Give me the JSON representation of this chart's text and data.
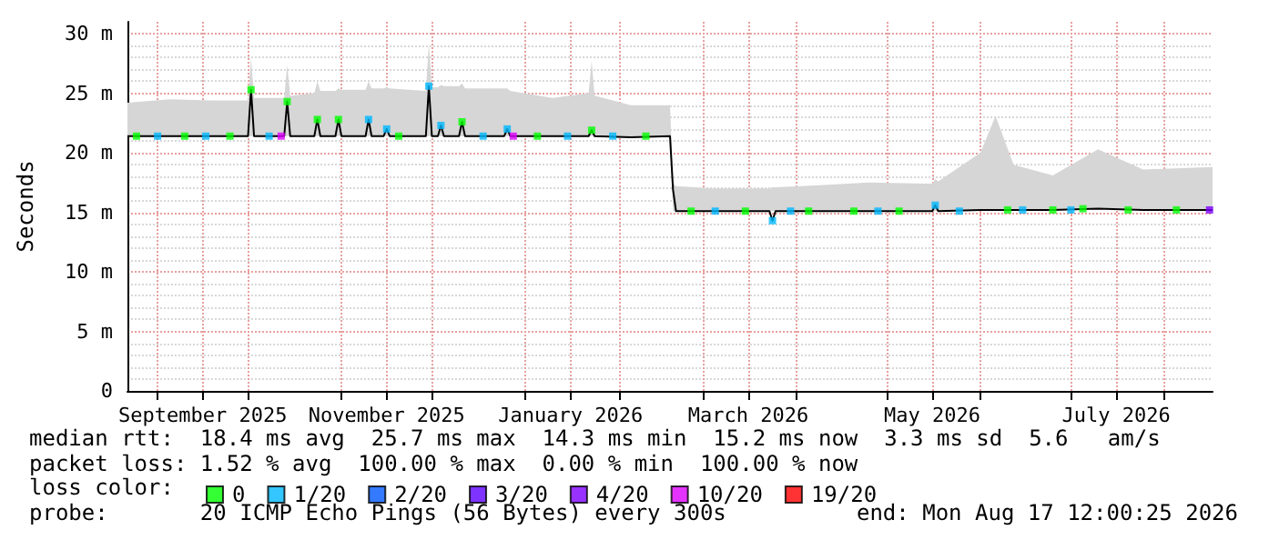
{
  "chart_data": {
    "type": "line",
    "ylabel": "Seconds",
    "legend_title": "loss color:",
    "legend": "bottom left",
    "grid": true,
    "marker": "square",
    "xlim": [
      "2025-08-22",
      "2026-08-17"
    ],
    "xticks": [
      {
        "value": "2025-09-01",
        "label": null
      },
      {
        "value": "2025-09-16",
        "label": "September 2025"
      },
      {
        "value": "2025-10-01",
        "label": null
      },
      {
        "value": "2025-11-01",
        "label": null
      },
      {
        "value": "2025-11-16",
        "label": "November 2025"
      },
      {
        "value": "2025-12-01",
        "label": null
      },
      {
        "value": "2026-01-01",
        "label": null
      },
      {
        "value": "2026-01-16",
        "label": "January 2026"
      },
      {
        "value": "2026-02-01",
        "label": null
      },
      {
        "value": "2026-03-01",
        "label": null
      },
      {
        "value": "2026-03-16",
        "label": "March 2026"
      },
      {
        "value": "2026-04-01",
        "label": null
      },
      {
        "value": "2026-05-01",
        "label": null
      },
      {
        "value": "2026-05-16",
        "label": "May 2026"
      },
      {
        "value": "2026-06-01",
        "label": null
      },
      {
        "value": "2026-07-01",
        "label": null
      },
      {
        "value": "2026-07-16",
        "label": "July 2026"
      },
      {
        "value": "2026-08-01",
        "label": null
      }
    ],
    "ylim": [
      0,
      31
    ],
    "yticks": [
      0,
      {
        "value": 1,
        "label": null
      },
      {
        "value": 2,
        "label": null
      },
      {
        "value": 3,
        "label": null
      },
      {
        "value": 4,
        "label": null
      },
      {
        "value": 5,
        "label": "5 m"
      },
      {
        "value": 6,
        "label": null
      },
      {
        "value": 7,
        "label": null
      },
      {
        "value": 8,
        "label": null
      },
      {
        "value": 9,
        "label": null
      },
      {
        "value": 10,
        "label": "10 m"
      },
      {
        "value": 11,
        "label": null
      },
      {
        "value": 12,
        "label": null
      },
      {
        "value": 13,
        "label": null
      },
      {
        "value": 14,
        "label": null
      },
      {
        "value": 15,
        "label": "15 m"
      },
      {
        "value": 16,
        "label": null
      },
      {
        "value": 17,
        "label": null
      },
      {
        "value": 18,
        "label": null
      },
      {
        "value": 19,
        "label": null
      },
      {
        "value": 20,
        "label": "20 m"
      },
      {
        "value": 21,
        "label": null
      },
      {
        "value": 22,
        "label": null
      },
      {
        "value": 23,
        "label": null
      },
      {
        "value": 24,
        "label": null
      },
      {
        "value": 25,
        "label": "25 m"
      },
      {
        "value": 26,
        "label": null
      },
      {
        "value": 27,
        "label": null
      },
      {
        "value": 28,
        "label": null
      },
      {
        "value": 29,
        "label": null
      },
      {
        "value": 30,
        "label": "30 m"
      }
    ],
    "annotations": [
      "median rtt:  18.4 ms avg  25.7 ms max  14.3 ms min  15.2 ms now  3.3 ms sd  5.6   am/s",
      "packet loss: 1.52 % avg  100.00 % max  0.00 % min  100.00 % now",
      "probe:       20 ICMP Echo Pings (56 Bytes) every 300s",
      "end: Mon Aug 17 12:00:25 2026"
    ],
    "series": [
      {
        "color": "#000000",
        "marker": "none",
        "x": [
          "2025-08-22",
          "2025-09-05",
          "2025-09-19",
          "2025-10-01",
          "2025-10-02",
          "2025-10-03",
          "2025-10-13",
          "2025-10-14",
          "2025-10-15",
          "2025-10-23",
          "2025-10-24",
          "2025-10-25",
          "2025-10-30",
          "2025-10-31",
          "2025-11-01",
          "2025-11-09",
          "2025-11-10",
          "2025-11-11",
          "2025-11-15",
          "2025-11-16",
          "2025-11-17",
          "2025-11-29",
          "2025-11-30",
          "2025-12-01",
          "2025-12-03",
          "2025-12-04",
          "2025-12-05",
          "2025-12-10",
          "2025-12-11",
          "2025-12-12",
          "2025-12-25",
          "2025-12-26",
          "2025-12-27",
          "2026-01-10",
          "2026-01-22",
          "2026-01-23",
          "2026-01-24",
          "2026-02-05",
          "2026-02-18",
          "2026-02-19",
          "2026-02-20",
          "2026-03-05",
          "2026-03-23",
          "2026-03-24",
          "2026-03-25",
          "2026-04-10",
          "2026-04-25",
          "2026-05-16",
          "2026-05-17",
          "2026-05-18",
          "2026-06-01",
          "2026-06-06",
          "2026-06-12",
          "2026-06-25",
          "2026-07-10",
          "2026-07-25",
          "2026-08-17"
        ],
        "values": [
          21.4,
          21.4,
          21.4,
          21.4,
          25.3,
          21.4,
          21.4,
          24.3,
          21.4,
          21.4,
          22.8,
          21.4,
          21.4,
          22.8,
          21.4,
          21.4,
          22.8,
          21.4,
          21.4,
          22.0,
          21.4,
          21.4,
          25.6,
          21.4,
          21.4,
          22.3,
          21.4,
          21.4,
          22.6,
          21.4,
          21.4,
          22.0,
          21.4,
          21.4,
          21.4,
          21.9,
          21.4,
          21.3,
          21.4,
          16.9,
          15.1,
          15.1,
          15.1,
          14.3,
          15.1,
          15.1,
          15.1,
          15.1,
          15.6,
          15.1,
          15.2,
          15.2,
          15.2,
          15.2,
          15.3,
          15.2,
          15.2
        ],
        "lower": [
          21.4,
          21.4,
          21.4,
          21.4,
          21.4,
          21.4,
          21.4,
          21.4,
          21.4,
          21.4,
          21.4,
          21.4,
          21.4,
          21.4,
          21.4,
          21.4,
          21.4,
          21.4,
          21.4,
          21.4,
          21.4,
          21.4,
          21.4,
          21.4,
          21.4,
          21.4,
          21.4,
          21.4,
          21.4,
          21.4,
          21.4,
          21.4,
          21.4,
          21.4,
          21.4,
          21.4,
          21.4,
          21.3,
          21.4,
          15.1,
          15.1,
          15.1,
          15.1,
          15.1,
          15.1,
          15.1,
          15.1,
          15.1,
          15.1,
          15.1,
          15.2,
          15.2,
          15.2,
          15.2,
          15.3,
          15.2,
          15.2
        ],
        "upper": [
          24.2,
          24.5,
          24.4,
          24.4,
          28.0,
          24.6,
          24.6,
          27.4,
          24.8,
          25.0,
          26.0,
          25.2,
          25.2,
          25.4,
          25.3,
          25.3,
          26.0,
          25.4,
          25.4,
          25.5,
          25.4,
          25.2,
          29.2,
          25.5,
          25.5,
          25.7,
          25.6,
          25.6,
          25.8,
          25.4,
          25.4,
          25.4,
          25.2,
          24.6,
          25.0,
          27.7,
          24.8,
          24.0,
          24.0,
          17.5,
          17.2,
          17.0,
          17.0,
          17.1,
          17.1,
          17.3,
          17.5,
          17.4,
          17.8,
          17.6,
          20.0,
          23.1,
          19.0,
          18.1,
          20.3,
          18.6,
          18.8
        ]
      },
      {
        "type": "scatter",
        "name": "0",
        "color": "#00ff00",
        "x": [
          "2025-08-25",
          "2025-09-10",
          "2025-09-25",
          "2025-10-02",
          "2025-10-14",
          "2025-10-24",
          "2025-10-31",
          "2025-11-20",
          "2025-12-11",
          "2026-01-05",
          "2026-01-23",
          "2026-02-10",
          "2026-02-25",
          "2026-03-15",
          "2026-04-05",
          "2026-04-20",
          "2026-05-05",
          "2026-06-10",
          "2026-06-25",
          "2026-07-05",
          "2026-07-20",
          "2026-08-05"
        ],
        "values": [
          21.4,
          21.4,
          21.4,
          25.3,
          24.3,
          22.8,
          22.8,
          21.4,
          22.6,
          21.4,
          21.9,
          21.4,
          15.1,
          15.1,
          15.1,
          15.1,
          15.1,
          15.2,
          15.2,
          15.3,
          15.2,
          15.2
        ]
      },
      {
        "type": "scatter",
        "name": "1/20",
        "color": "#00b8ff",
        "x": [
          "2025-09-01",
          "2025-09-17",
          "2025-10-08",
          "2025-11-10",
          "2025-11-16",
          "2025-11-30",
          "2025-12-04",
          "2025-12-18",
          "2025-12-26",
          "2026-01-15",
          "2026-01-30",
          "2026-03-05",
          "2026-03-24",
          "2026-03-30",
          "2026-04-28",
          "2026-05-17",
          "2026-05-25",
          "2026-06-15",
          "2026-07-01"
        ],
        "values": [
          21.4,
          21.4,
          21.4,
          22.8,
          22.0,
          25.6,
          22.3,
          21.4,
          22.0,
          21.4,
          21.4,
          15.1,
          14.3,
          15.1,
          15.1,
          15.6,
          15.1,
          15.2,
          15.2
        ]
      },
      {
        "type": "scatter",
        "name": "2/20",
        "color": "#0059ff"
      },
      {
        "type": "scatter",
        "name": "3/20",
        "color": "#5e00ff"
      },
      {
        "type": "scatter",
        "name": "4/20",
        "color": "#7e00ff",
        "x": [
          "2026-08-16"
        ],
        "values": [
          15.2
        ]
      },
      {
        "type": "scatter",
        "name": "10/20",
        "color": "#dd00ff",
        "x": [
          "2025-10-12",
          "2025-12-28"
        ],
        "values": [
          21.4,
          21.4
        ]
      },
      {
        "type": "scatter",
        "name": "19/20",
        "color": "#ff0000"
      }
    ]
  }
}
